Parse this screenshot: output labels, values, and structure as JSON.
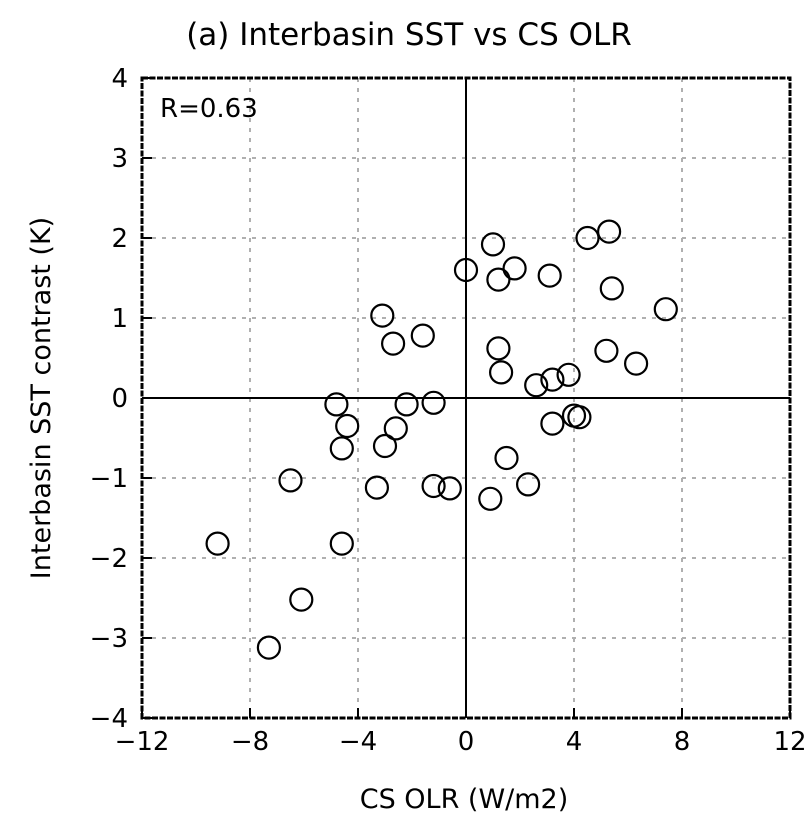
{
  "chart_data": {
    "type": "scatter",
    "title": "(a) Interbasin SST vs CS OLR",
    "xlabel": "CS OLR (W/m2)",
    "ylabel": "Interbasin SST contrast (K)",
    "annotation": "R=0.63",
    "xlim": [
      -12,
      12
    ],
    "ylim": [
      -4,
      4
    ],
    "xticks": [
      -12,
      -8,
      -4,
      0,
      4,
      8,
      12
    ],
    "yticks": [
      -4,
      -3,
      -2,
      -1,
      0,
      1,
      2,
      3,
      4
    ],
    "grid": true,
    "marker": "open-circle",
    "x": [
      -9.2,
      -7.3,
      -6.1,
      -6.5,
      -4.6,
      -4.6,
      -4.4,
      -4.8,
      -3.3,
      -3.1,
      -3.0,
      -2.7,
      -2.6,
      -2.2,
      -1.6,
      -1.2,
      -1.2,
      -0.6,
      0.0,
      0.9,
      1.0,
      1.2,
      1.2,
      1.3,
      1.5,
      1.8,
      2.3,
      2.6,
      3.1,
      3.2,
      3.2,
      3.8,
      4.0,
      4.2,
      4.5,
      5.2,
      5.3,
      5.4,
      6.3,
      7.4
    ],
    "y": [
      -1.82,
      -3.12,
      -2.52,
      -1.03,
      -1.82,
      -0.63,
      -0.35,
      -0.08,
      -1.12,
      1.03,
      -0.6,
      0.68,
      -0.38,
      -0.08,
      0.78,
      -1.1,
      -0.06,
      -1.13,
      1.6,
      -1.26,
      1.92,
      1.48,
      0.62,
      0.32,
      -0.75,
      1.62,
      -1.08,
      0.16,
      1.53,
      0.23,
      -0.32,
      0.29,
      -0.22,
      -0.24,
      2.0,
      0.59,
      2.08,
      1.37,
      0.43,
      1.11
    ]
  }
}
